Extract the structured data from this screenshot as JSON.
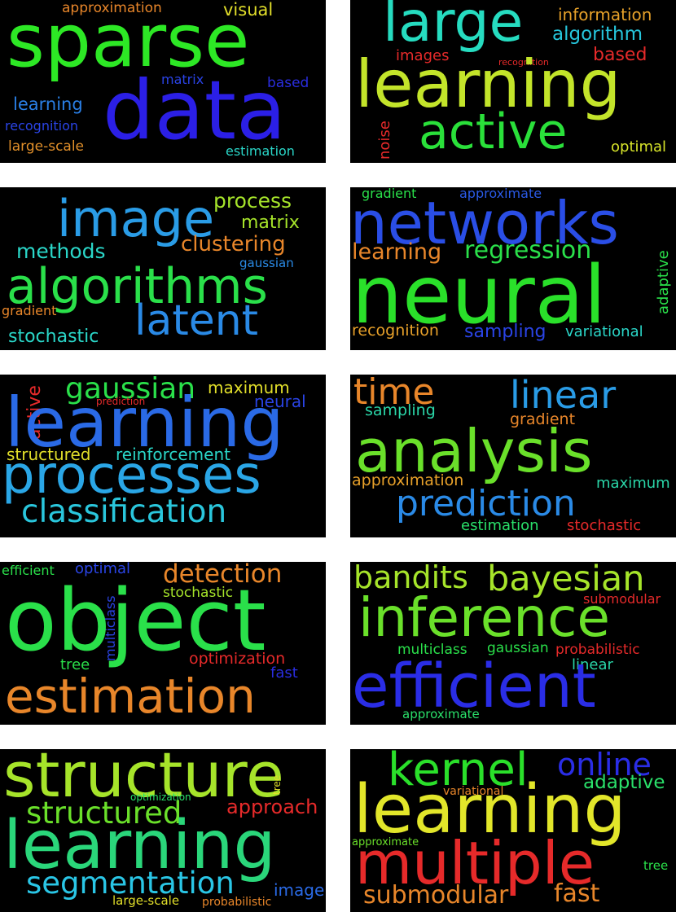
{
  "panels": [
    {
      "words": [
        {
          "text": "sparse",
          "color": "#2de825"
        },
        {
          "text": "data",
          "color": "#2b1fe6"
        },
        {
          "text": "approximation",
          "color": "#e8862a"
        },
        {
          "text": "visual",
          "color": "#e2df2a"
        },
        {
          "text": "matrix",
          "color": "#2a43e6"
        },
        {
          "text": "based",
          "color": "#2a2de0"
        },
        {
          "text": "learning",
          "color": "#2a7fe6"
        },
        {
          "text": "recognition",
          "color": "#2a44e6"
        },
        {
          "text": "large-scale",
          "color": "#e2902a"
        },
        {
          "text": "estimation",
          "color": "#2ad6c8"
        }
      ]
    },
    {
      "words": [
        {
          "text": "large",
          "color": "#26dcc0"
        },
        {
          "text": "information",
          "color": "#e6a12a"
        },
        {
          "text": "algorithm",
          "color": "#26c6dc"
        },
        {
          "text": "images",
          "color": "#e62a2a"
        },
        {
          "text": "recognition",
          "color": "#e62a2a"
        },
        {
          "text": "based",
          "color": "#e62a2a"
        },
        {
          "text": "learning",
          "color": "#c3e42a"
        },
        {
          "text": "noise",
          "color": "#e62a2a"
        },
        {
          "text": "active",
          "color": "#2ae03a"
        },
        {
          "text": "optimal",
          "color": "#d7e42a"
        }
      ]
    },
    {
      "words": [
        {
          "text": "image",
          "color": "#2a9ce6"
        },
        {
          "text": "process",
          "color": "#a6e42a"
        },
        {
          "text": "matrix",
          "color": "#a6e42a"
        },
        {
          "text": "methods",
          "color": "#2ad6c8"
        },
        {
          "text": "clustering",
          "color": "#e8862a"
        },
        {
          "text": "gaussian",
          "color": "#2a8ae6"
        },
        {
          "text": "algorithms",
          "color": "#2ae04a"
        },
        {
          "text": "gradient",
          "color": "#e8862a"
        },
        {
          "text": "latent",
          "color": "#2a8ae6"
        },
        {
          "text": "stochastic",
          "color": "#2ad6c8"
        }
      ]
    },
    {
      "words": [
        {
          "text": "gradient",
          "color": "#2ae04a"
        },
        {
          "text": "approximate",
          "color": "#2a5ae6"
        },
        {
          "text": "networks",
          "color": "#2a4ee6"
        },
        {
          "text": "learning",
          "color": "#e8862a"
        },
        {
          "text": "regression",
          "color": "#2ae04a"
        },
        {
          "text": "adaptive",
          "color": "#2ae04a"
        },
        {
          "text": "neural",
          "color": "#2ae02a"
        },
        {
          "text": "recognition",
          "color": "#e8a12a"
        },
        {
          "text": "sampling",
          "color": "#2a44e6"
        },
        {
          "text": "variational",
          "color": "#2ad6c8"
        }
      ]
    },
    {
      "words": [
        {
          "text": "active",
          "color": "#e62a2a"
        },
        {
          "text": "gaussian",
          "color": "#2ae04a"
        },
        {
          "text": "maximum",
          "color": "#e2df2a"
        },
        {
          "text": "prediction",
          "color": "#e62a2a"
        },
        {
          "text": "neural",
          "color": "#2a44e6"
        },
        {
          "text": "learning",
          "color": "#2a6ae6"
        },
        {
          "text": "structured",
          "color": "#e2df2a"
        },
        {
          "text": "reinforcement",
          "color": "#2ad6c8"
        },
        {
          "text": "processes",
          "color": "#2aa6e6"
        },
        {
          "text": "classification",
          "color": "#2ac6dc"
        }
      ]
    },
    {
      "words": [
        {
          "text": "time",
          "color": "#e8862a"
        },
        {
          "text": "linear",
          "color": "#2a9ce6"
        },
        {
          "text": "sampling",
          "color": "#2ad6a8"
        },
        {
          "text": "gradient",
          "color": "#e8862a"
        },
        {
          "text": "analysis",
          "color": "#6ae02a"
        },
        {
          "text": "approximation",
          "color": "#e8a12a"
        },
        {
          "text": "maximum",
          "color": "#2ad6a8"
        },
        {
          "text": "prediction",
          "color": "#2a8ae6"
        },
        {
          "text": "estimation",
          "color": "#2ae06a"
        },
        {
          "text": "stochastic",
          "color": "#e62a2a"
        }
      ]
    },
    {
      "words": [
        {
          "text": "efficient",
          "color": "#2ae04a"
        },
        {
          "text": "optimal",
          "color": "#2a44e6"
        },
        {
          "text": "detection",
          "color": "#e8862a"
        },
        {
          "text": "multiclass",
          "color": "#2a44e6"
        },
        {
          "text": "stochastic",
          "color": "#a6e42a"
        },
        {
          "text": "object",
          "color": "#2ae04a"
        },
        {
          "text": "optimization",
          "color": "#e62a2a"
        },
        {
          "text": "tree",
          "color": "#2ae04a"
        },
        {
          "text": "fast",
          "color": "#2a2de0"
        },
        {
          "text": "estimation",
          "color": "#e8862a"
        }
      ]
    },
    {
      "words": [
        {
          "text": "bandits",
          "color": "#a6e42a"
        },
        {
          "text": "bayesian",
          "color": "#a6e42a"
        },
        {
          "text": "submodular",
          "color": "#e62a2a"
        },
        {
          "text": "inference",
          "color": "#6ae02a"
        },
        {
          "text": "multiclass",
          "color": "#2ae04a"
        },
        {
          "text": "gaussian",
          "color": "#2ae04a"
        },
        {
          "text": "probabilistic",
          "color": "#e62a2a"
        },
        {
          "text": "linear",
          "color": "#2ad6a8"
        },
        {
          "text": "efficient",
          "color": "#2a2de6"
        },
        {
          "text": "approximate",
          "color": "#2ae06a"
        }
      ]
    },
    {
      "words": [
        {
          "text": "structure",
          "color": "#a6e42a"
        },
        {
          "text": "tree",
          "color": "#e2df2a"
        },
        {
          "text": "optimization",
          "color": "#2ae06a"
        },
        {
          "text": "structured",
          "color": "#6ae02a"
        },
        {
          "text": "approach",
          "color": "#e62a2a"
        },
        {
          "text": "learning",
          "color": "#2ad67a"
        },
        {
          "text": "segmentation",
          "color": "#2ac6e6"
        },
        {
          "text": "image",
          "color": "#2a6ae6"
        },
        {
          "text": "large-scale",
          "color": "#e2df2a"
        },
        {
          "text": "probabilistic",
          "color": "#e8862a"
        }
      ]
    },
    {
      "words": [
        {
          "text": "kernel",
          "color": "#2ae02a"
        },
        {
          "text": "online",
          "color": "#2a2de6"
        },
        {
          "text": "adaptive",
          "color": "#2ae06a"
        },
        {
          "text": "variational",
          "color": "#e8862a"
        },
        {
          "text": "learning",
          "color": "#e2e62a"
        },
        {
          "text": "approximate",
          "color": "#6ae02a"
        },
        {
          "text": "multiple",
          "color": "#e62a2a"
        },
        {
          "text": "tree",
          "color": "#2ae04a"
        },
        {
          "text": "submodular",
          "color": "#e8862a"
        },
        {
          "text": "fast",
          "color": "#e8862a"
        }
      ]
    }
  ]
}
